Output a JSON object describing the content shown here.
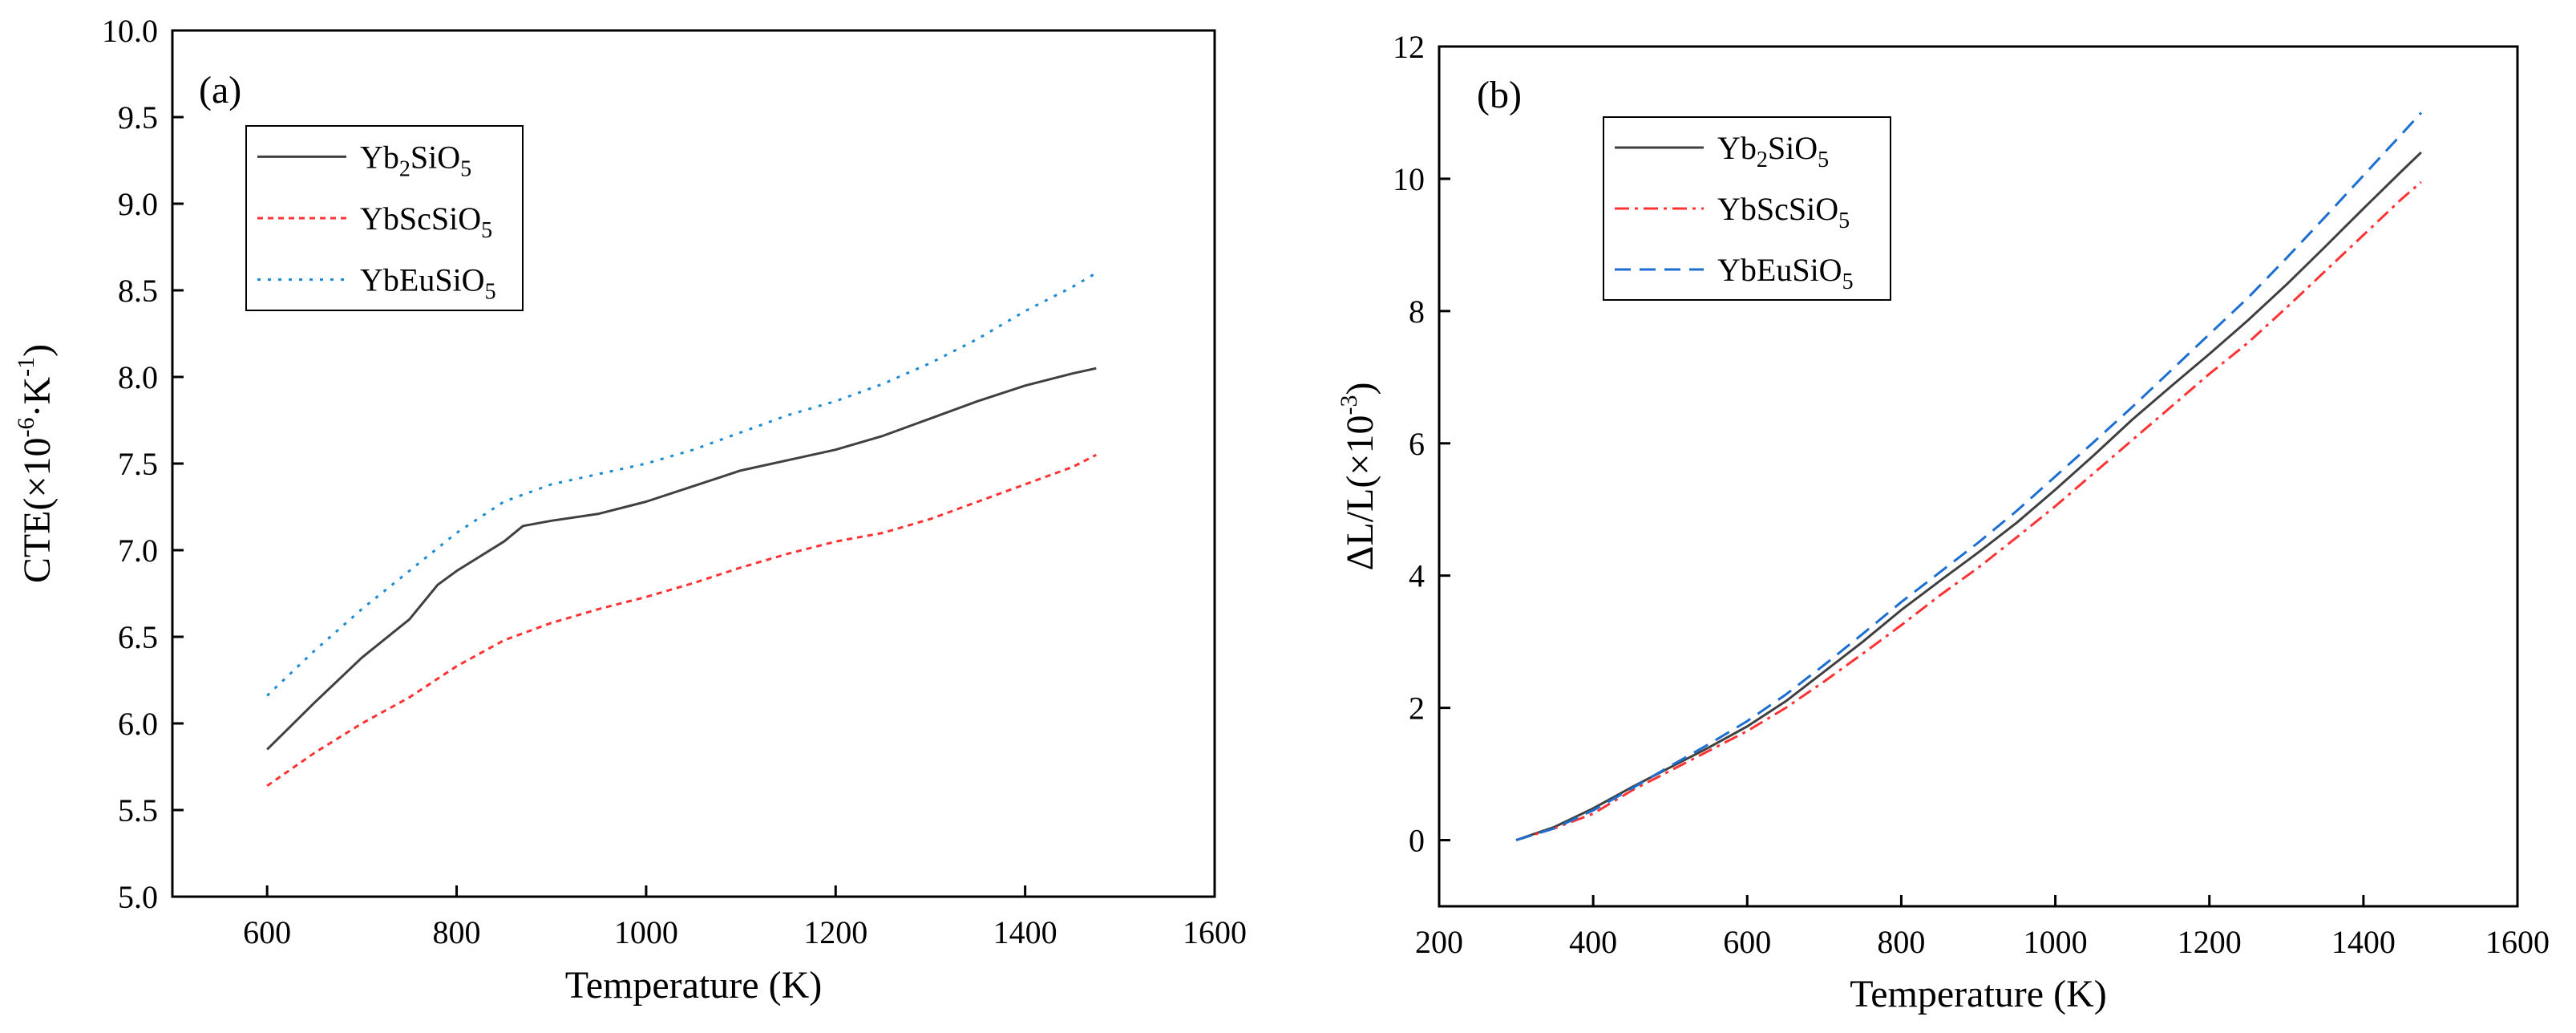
{
  "chart_data": [
    {
      "type": "line",
      "panel_label": "(a)",
      "xlabel": "Temperature (K)",
      "ylabel": {
        "base": "CTE(×10",
        "exp1": "-6",
        "mid": "·K",
        "exp2": "-1",
        "end": ")"
      },
      "xlim": [
        500,
        1600
      ],
      "ylim": [
        5.0,
        10.0
      ],
      "xticks": [
        600,
        800,
        1000,
        1200,
        1400,
        1600
      ],
      "xtick_labels": [
        "600",
        "800",
        "1000",
        "1200",
        "1400",
        "1600"
      ],
      "yticks": [
        5.0,
        5.5,
        6.0,
        6.5,
        7.0,
        7.5,
        8.0,
        8.5,
        9.0,
        9.5,
        10.0
      ],
      "ytick_labels": [
        "5.0",
        "5.5",
        "6.0",
        "6.5",
        "7.0",
        "7.5",
        "8.0",
        "8.5",
        "9.0",
        "9.5",
        "10.0"
      ],
      "legend_position": "top-left",
      "series": [
        {
          "name": "Yb2SiO5",
          "label_base": "Yb",
          "label_sub1": "2",
          "label_mid": "SiO",
          "label_sub2": "5",
          "color": "#404040",
          "dash": "solid",
          "x": [
            600,
            650,
            700,
            750,
            780,
            800,
            850,
            870,
            900,
            950,
            1000,
            1050,
            1100,
            1150,
            1200,
            1250,
            1300,
            1350,
            1400,
            1450,
            1475
          ],
          "y": [
            5.85,
            6.12,
            6.38,
            6.6,
            6.8,
            6.88,
            7.05,
            7.14,
            7.17,
            7.21,
            7.28,
            7.37,
            7.46,
            7.52,
            7.58,
            7.66,
            7.76,
            7.86,
            7.95,
            8.02,
            8.05
          ]
        },
        {
          "name": "YbScSiO5",
          "label_base": "YbScSiO",
          "label_sub1": "5",
          "label_mid": "",
          "label_sub2": "",
          "color": "#ff3333",
          "dash": "short-dash",
          "x": [
            600,
            650,
            700,
            750,
            800,
            850,
            900,
            950,
            1000,
            1050,
            1100,
            1150,
            1200,
            1250,
            1300,
            1350,
            1400,
            1450,
            1475
          ],
          "y": [
            5.64,
            5.83,
            6.0,
            6.15,
            6.33,
            6.48,
            6.58,
            6.66,
            6.73,
            6.81,
            6.9,
            6.98,
            7.05,
            7.1,
            7.18,
            7.28,
            7.38,
            7.48,
            7.55
          ]
        },
        {
          "name": "YbEuSiO5",
          "label_base": "YbEuSiO",
          "label_sub1": "5",
          "label_mid": "",
          "label_sub2": "",
          "color": "#1a8ad4",
          "dash": "dot",
          "x": [
            600,
            650,
            700,
            750,
            800,
            850,
            900,
            950,
            1000,
            1050,
            1100,
            1150,
            1200,
            1250,
            1300,
            1350,
            1400,
            1450,
            1475
          ],
          "y": [
            6.16,
            6.42,
            6.66,
            6.88,
            7.1,
            7.28,
            7.38,
            7.44,
            7.5,
            7.58,
            7.68,
            7.78,
            7.86,
            7.96,
            8.08,
            8.22,
            8.38,
            8.52,
            8.6
          ]
        }
      ]
    },
    {
      "type": "line",
      "panel_label": "(b)",
      "xlabel": "Temperature (K)",
      "ylabel": {
        "base": "ΔL/L(×10",
        "exp1": "-3",
        "mid": "",
        "exp2": "",
        "end": ")"
      },
      "xlim": [
        200,
        1600
      ],
      "ylim": [
        -1,
        12
      ],
      "xticks": [
        200,
        400,
        600,
        800,
        1000,
        1200,
        1400,
        1600
      ],
      "xtick_labels": [
        "200",
        "400",
        "600",
        "800",
        "1000",
        "1200",
        "1400",
        "1600"
      ],
      "yticks": [
        0,
        2,
        4,
        6,
        8,
        10,
        12
      ],
      "ytick_labels": [
        "0",
        "2",
        "4",
        "6",
        "8",
        "10",
        "12"
      ],
      "legend_position": "top-left",
      "series": [
        {
          "name": "Yb2SiO5",
          "label_base": "Yb",
          "label_sub1": "2",
          "label_mid": "SiO",
          "label_sub2": "5",
          "color": "#404040",
          "dash": "solid",
          "x": [
            300,
            350,
            400,
            450,
            500,
            550,
            600,
            650,
            700,
            750,
            800,
            850,
            900,
            950,
            1000,
            1050,
            1100,
            1150,
            1200,
            1250,
            1300,
            1350,
            1400,
            1450,
            1475
          ],
          "y": [
            0.0,
            0.2,
            0.48,
            0.8,
            1.1,
            1.4,
            1.72,
            2.1,
            2.55,
            3.0,
            3.48,
            3.92,
            4.35,
            4.8,
            5.3,
            5.82,
            6.36,
            6.86,
            7.35,
            7.86,
            8.4,
            8.97,
            9.55,
            10.12,
            10.4
          ]
        },
        {
          "name": "YbScSiO5",
          "label_base": "YbScSiO",
          "label_sub1": "5",
          "label_mid": "",
          "label_sub2": "",
          "color": "#ff3333",
          "dash": "dash-dot",
          "x": [
            300,
            350,
            400,
            450,
            500,
            550,
            600,
            650,
            700,
            750,
            800,
            850,
            900,
            950,
            1000,
            1050,
            1100,
            1150,
            1200,
            1250,
            1300,
            1350,
            1400,
            1450,
            1475
          ],
          "y": [
            0.0,
            0.18,
            0.4,
            0.75,
            1.05,
            1.35,
            1.65,
            2.0,
            2.4,
            2.82,
            3.25,
            3.7,
            4.12,
            4.58,
            5.05,
            5.55,
            6.05,
            6.55,
            7.05,
            7.52,
            8.05,
            8.6,
            9.15,
            9.7,
            9.95
          ]
        },
        {
          "name": "YbEuSiO5",
          "label_base": "YbEuSiO",
          "label_sub1": "5",
          "label_mid": "",
          "label_sub2": "",
          "color": "#1a6fd0",
          "dash": "long-dash",
          "x": [
            300,
            350,
            400,
            450,
            500,
            550,
            600,
            650,
            700,
            750,
            800,
            850,
            900,
            950,
            1000,
            1050,
            1100,
            1150,
            1200,
            1250,
            1300,
            1350,
            1400,
            1450,
            1475
          ],
          "y": [
            0.0,
            0.18,
            0.45,
            0.78,
            1.12,
            1.45,
            1.8,
            2.2,
            2.65,
            3.12,
            3.6,
            4.05,
            4.5,
            4.98,
            5.5,
            6.02,
            6.55,
            7.1,
            7.65,
            8.2,
            8.8,
            9.42,
            10.05,
            10.68,
            11.0
          ]
        }
      ]
    }
  ]
}
